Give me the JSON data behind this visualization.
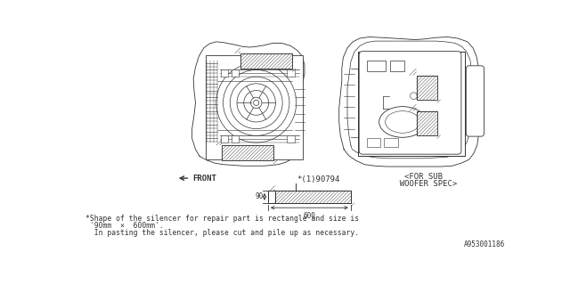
{
  "bg_color": "#ffffff",
  "part_number": "*(1)90794",
  "dimension_width_label": "600",
  "dimension_height_label": "90",
  "front_label": "FRONT",
  "subwoofer_line1": "<FOR SUB",
  "subwoofer_line2": "  WOOFER SPEC>",
  "footnote_line1": "*Shape of the silencer for repair part is rectangle and size is",
  "footnote_line2": " '90mm  ×  600mm'.",
  "footnote_line3": "  In pasting the silencer, please cut and pile up as necessary.",
  "part_id": "A953001186",
  "line_color": "#333333",
  "font_size_label": 6.5,
  "font_size_note": 5.8,
  "font_size_small": 5.5,
  "font_size_partid": 5.5
}
